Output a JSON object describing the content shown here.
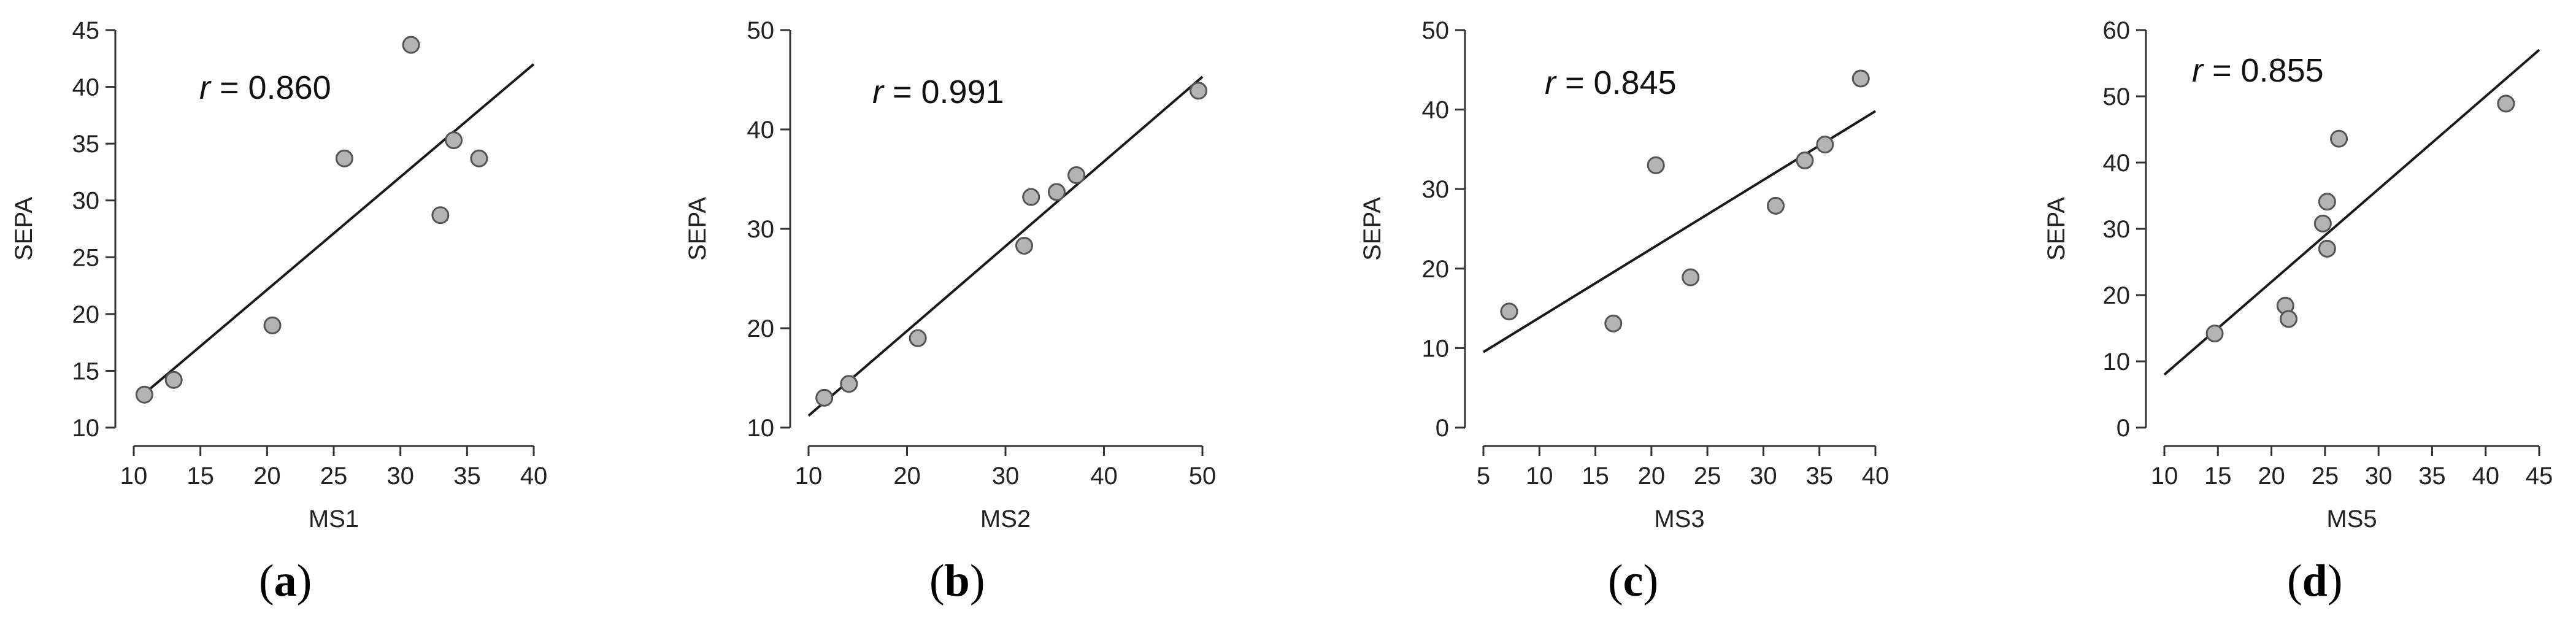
{
  "chart_data": [
    {
      "type": "scatter",
      "panel_label": "a",
      "xlabel": "MS1",
      "ylabel": "SEPA",
      "annotation": {
        "variable": "r",
        "text": " = 0.860"
      },
      "xlim": [
        10,
        40
      ],
      "ylim": [
        10,
        45
      ],
      "xticks": [
        10,
        15,
        20,
        25,
        30,
        35,
        40
      ],
      "yticks": [
        10,
        15,
        20,
        25,
        30,
        35,
        40,
        45
      ],
      "points": [
        {
          "x": 10.8,
          "y": 12.9
        },
        {
          "x": 13.0,
          "y": 14.2
        },
        {
          "x": 20.4,
          "y": 19.0
        },
        {
          "x": 25.8,
          "y": 33.7
        },
        {
          "x": 30.8,
          "y": 43.7
        },
        {
          "x": 33.0,
          "y": 28.7
        },
        {
          "x": 34.0,
          "y": 35.3
        },
        {
          "x": 35.9,
          "y": 33.7
        }
      ],
      "fit_line": [
        {
          "x": 10.5,
          "y": 12.7
        },
        {
          "x": 40.0,
          "y": 42.0
        }
      ]
    },
    {
      "type": "scatter",
      "panel_label": "b",
      "xlabel": "MS2",
      "ylabel": "SEPA",
      "annotation": {
        "variable": "r",
        "text": " = 0.991"
      },
      "xlim": [
        10,
        50
      ],
      "ylim": [
        10,
        50
      ],
      "xticks": [
        10,
        20,
        30,
        40,
        50
      ],
      "yticks": [
        10,
        20,
        30,
        40,
        50
      ],
      "points": [
        {
          "x": 11.6,
          "y": 13.0
        },
        {
          "x": 14.1,
          "y": 14.4
        },
        {
          "x": 21.1,
          "y": 19.0
        },
        {
          "x": 31.9,
          "y": 28.3
        },
        {
          "x": 32.6,
          "y": 33.2
        },
        {
          "x": 35.2,
          "y": 33.7
        },
        {
          "x": 37.2,
          "y": 35.4
        },
        {
          "x": 49.6,
          "y": 43.9
        }
      ],
      "fit_line": [
        {
          "x": 10.0,
          "y": 11.2
        },
        {
          "x": 50.0,
          "y": 45.3
        }
      ]
    },
    {
      "type": "scatter",
      "panel_label": "c",
      "xlabel": "MS3",
      "ylabel": "SEPA",
      "annotation": {
        "variable": "r",
        "text": " = 0.845"
      },
      "xlim": [
        5,
        40
      ],
      "ylim": [
        0,
        50
      ],
      "xticks": [
        5,
        10,
        15,
        20,
        25,
        30,
        35,
        40
      ],
      "yticks": [
        0,
        10,
        20,
        30,
        40,
        50
      ],
      "points": [
        {
          "x": 7.3,
          "y": 14.6
        },
        {
          "x": 16.6,
          "y": 13.1
        },
        {
          "x": 20.4,
          "y": 33.0
        },
        {
          "x": 23.5,
          "y": 18.9
        },
        {
          "x": 31.1,
          "y": 27.9
        },
        {
          "x": 33.7,
          "y": 33.6
        },
        {
          "x": 35.5,
          "y": 35.6
        },
        {
          "x": 38.7,
          "y": 43.9
        }
      ],
      "fit_line": [
        {
          "x": 5.0,
          "y": 9.5
        },
        {
          "x": 40.0,
          "y": 39.8
        }
      ]
    },
    {
      "type": "scatter",
      "panel_label": "d",
      "xlabel": "MS5",
      "ylabel": "SEPA",
      "annotation": {
        "variable": "r",
        "text": " = 0.855"
      },
      "xlim": [
        10,
        45
      ],
      "ylim": [
        0,
        60
      ],
      "xticks": [
        10,
        15,
        20,
        25,
        30,
        35,
        40,
        45
      ],
      "yticks": [
        0,
        10,
        20,
        30,
        40,
        50,
        60
      ],
      "points": [
        {
          "x": 14.7,
          "y": 14.2
        },
        {
          "x": 21.3,
          "y": 18.4
        },
        {
          "x": 21.6,
          "y": 16.4
        },
        {
          "x": 24.8,
          "y": 30.8
        },
        {
          "x": 25.2,
          "y": 34.1
        },
        {
          "x": 25.2,
          "y": 27.0
        },
        {
          "x": 26.3,
          "y": 43.6
        },
        {
          "x": 41.9,
          "y": 48.9
        }
      ],
      "fit_line": [
        {
          "x": 10.0,
          "y": 8.0
        },
        {
          "x": 45.0,
          "y": 57.0
        }
      ]
    }
  ]
}
